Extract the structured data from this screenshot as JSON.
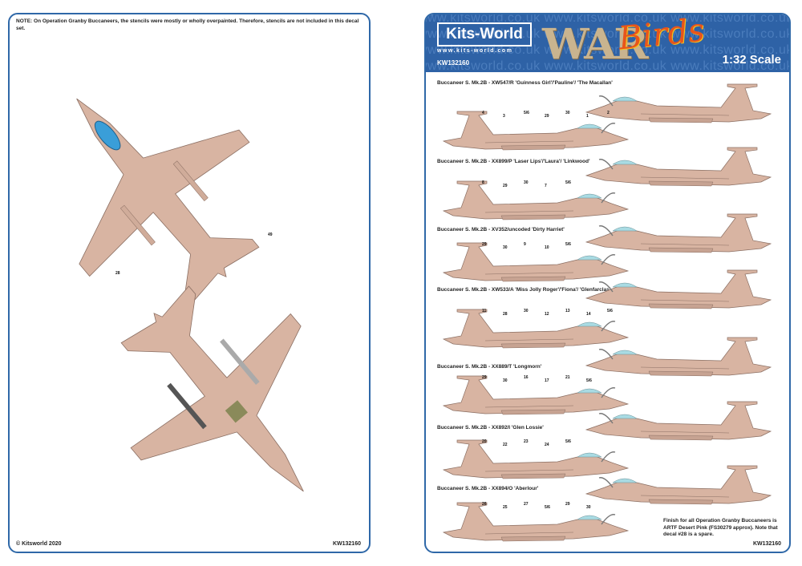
{
  "left_panel": {
    "note": "NOTE: On Operation Granby Buccaneers, the stencils were mostly or wholly overpainted. Therefore, stencils are not included in this decal set.",
    "callouts": [
      "49",
      "28"
    ],
    "copyright": "© Kitsworld 2020",
    "code": "KW132160"
  },
  "header": {
    "brand": "Kits-World",
    "url": "www.kits-world.com",
    "code": "KW132160",
    "series_logo_war": "WAR",
    "series_logo_birds": "Birds",
    "scale": "1:32 Scale",
    "watermark": "www.kitsworld.co.uk www.kitsworld.co.uk www.kitsworld.co.uk"
  },
  "schemes": [
    {
      "caption": "Buccaneer S. Mk.2B - XW547/R 'Guinness Girl'/'Pauline'/ 'The Macallan'",
      "numbers": [
        "4",
        "3",
        "5/6",
        "29",
        "30",
        "1",
        "2"
      ]
    },
    {
      "caption": "Buccaneer S. Mk.2B - XX899/P 'Laser Lips'/'Laura'/ 'Linkwood'",
      "numbers": [
        "8",
        "29",
        "30",
        "7",
        "5/6"
      ]
    },
    {
      "caption": "Buccaneer S. Mk.2B - XV352/uncoded 'Dirty Harriet'",
      "numbers": [
        "29",
        "30",
        "9",
        "10",
        "5/6"
      ]
    },
    {
      "caption": "Buccaneer S. Mk.2B - XW533/A 'Miss Jolly Roger'/'Fiona'/ 'Glenfarclas'",
      "numbers": [
        "11",
        "28",
        "30",
        "12",
        "13",
        "14",
        "5/6"
      ]
    },
    {
      "caption": "Buccaneer S. Mk.2B - XX889/T 'Longmorn'",
      "numbers": [
        "29",
        "30",
        "16",
        "17",
        "21",
        "5/6"
      ]
    },
    {
      "caption": "Buccaneer S. Mk.2B - XX892/I 'Glen Lossie'",
      "numbers": [
        "20",
        "22",
        "23",
        "24",
        "5/6"
      ]
    },
    {
      "caption": "Buccaneer S. Mk.2B - XX894/O 'Aberlour'",
      "numbers": [
        "26",
        "25",
        "27",
        "5/6",
        "29",
        "30"
      ]
    }
  ],
  "finish_note": "Finish for all Operation Granby Buccaneers is ARTF Desert Pink (FS30279 approx). Note that decal #28 is a spare.",
  "right_code": "KW132160",
  "colors": {
    "border": "#2f68a8",
    "header": "#2e62a6",
    "desert_pink": "#d8b4a2",
    "canopy": "#a9dbe3",
    "pylon_blue": "#3a9ed8"
  }
}
